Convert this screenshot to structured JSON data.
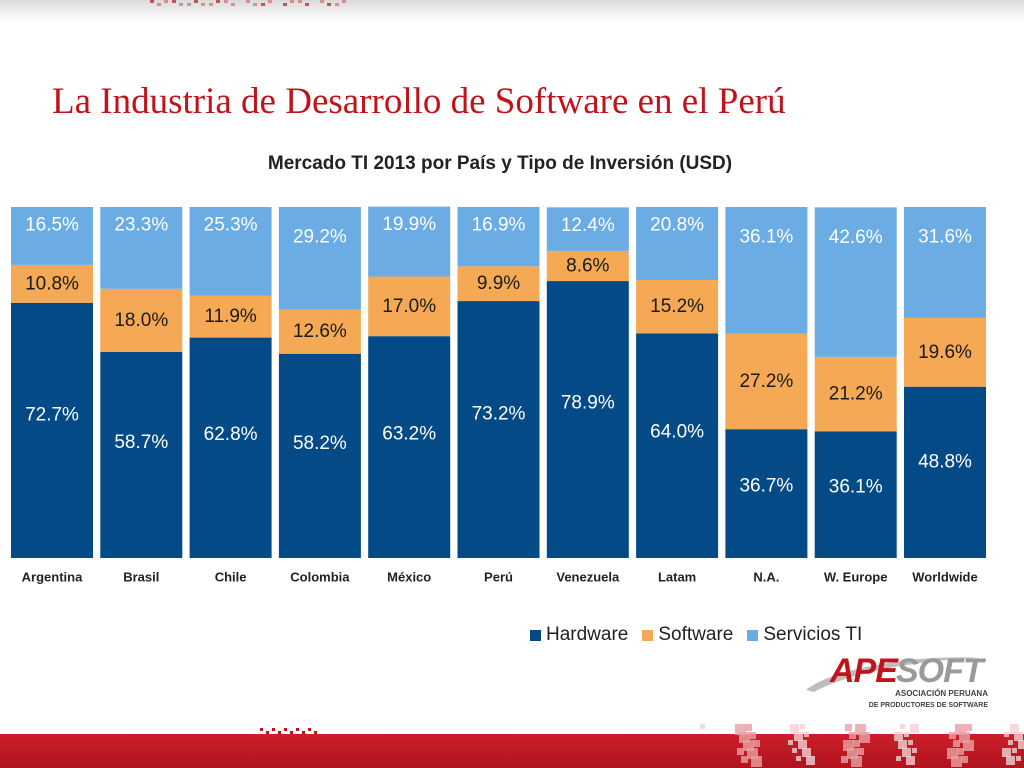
{
  "slide": {
    "title": "La Industria de Desarrollo de Software en el Perú"
  },
  "colors": {
    "accent": "#c0141c",
    "hardware": "#034a86",
    "software": "#f5a954",
    "servicios": "#6aace3"
  },
  "legend": {
    "hardware": "Hardware",
    "software": "Software",
    "servicios": "Servicios TI"
  },
  "logo": {
    "name": "APESOFT",
    "line1": "ASOCIACIÓN PERUANA",
    "line2": "DE PRODUCTORES DE SOFTWARE"
  },
  "chart_data": {
    "type": "bar",
    "stacked": true,
    "title": "Mercado TI 2013 por País y Tipo de Inversión (USD)",
    "categories": [
      "Argentina",
      "Brasil",
      "Chile",
      "Colombia",
      "México",
      "Perú",
      "Venezuela",
      "Latam",
      "N.A.",
      "W. Europe",
      "Worldwide"
    ],
    "series": [
      {
        "name": "Hardware",
        "color": "#034a86",
        "values": [
          72.7,
          58.7,
          62.8,
          58.2,
          63.2,
          73.2,
          78.9,
          64.0,
          36.7,
          36.1,
          48.8
        ]
      },
      {
        "name": "Software",
        "color": "#f5a954",
        "values": [
          10.8,
          18.0,
          11.9,
          12.6,
          17.0,
          9.9,
          8.6,
          15.2,
          27.2,
          21.2,
          19.6
        ]
      },
      {
        "name": "Servicios TI",
        "color": "#6aace3",
        "values": [
          16.5,
          23.3,
          25.3,
          29.2,
          19.9,
          16.9,
          12.4,
          20.8,
          36.1,
          42.6,
          31.6
        ]
      }
    ],
    "labels": [
      [
        "72.7%",
        "58.7%",
        "62.8%",
        "58.2%",
        "63.2%",
        "73.2%",
        "78.9%",
        "64.0%",
        "36.7%",
        "36.1%",
        "48.8%"
      ],
      [
        "10.8%",
        "18.0%",
        "11.9%",
        "12.6%",
        "17.0%",
        "9.9%",
        "8.6%",
        "15.2%",
        "27.2%",
        "21.2%",
        "19.6%"
      ],
      [
        "16.5%",
        "23.3%",
        "25.3%",
        "29.2%",
        "19.9%",
        "16.9%",
        "12.4%",
        "20.8%",
        "36.1%",
        "42.6%",
        "31.6%"
      ]
    ],
    "ylim": [
      0,
      100
    ],
    "grid": false,
    "legend_position": "bottom-right"
  }
}
